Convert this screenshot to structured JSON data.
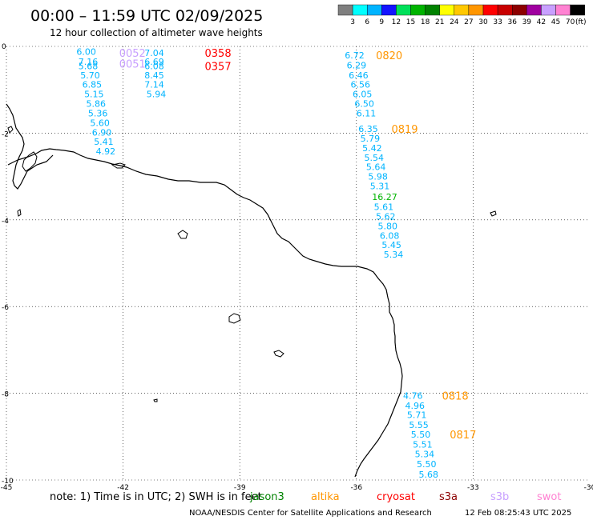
{
  "header": {
    "title": "00:00 – 11:59 UTC 02/09/2025",
    "subtitle": "12 hour collection of altimeter wave heights"
  },
  "colorbar": {
    "unit": "(ft)",
    "swatches": [
      {
        "color": "#7f7f7f",
        "label": "3"
      },
      {
        "color": "#00ffff",
        "label": "6"
      },
      {
        "color": "#00b4ff",
        "label": "9"
      },
      {
        "color": "#1414ff",
        "label": "12"
      },
      {
        "color": "#00e05a",
        "label": "15"
      },
      {
        "color": "#00b400",
        "label": "18"
      },
      {
        "color": "#008200",
        "label": "21"
      },
      {
        "color": "#ffff00",
        "label": "24"
      },
      {
        "color": "#ffc800",
        "label": "27"
      },
      {
        "color": "#ff9600",
        "label": "30"
      },
      {
        "color": "#ff0000",
        "label": "33"
      },
      {
        "color": "#c80000",
        "label": "36"
      },
      {
        "color": "#8c0000",
        "label": "39"
      },
      {
        "color": "#a000a0",
        "label": "42"
      },
      {
        "color": "#c8a0ff",
        "label": "45"
      },
      {
        "color": "#ff82d2",
        "label": "70"
      },
      {
        "color": "#000000",
        "label": ""
      }
    ]
  },
  "chart_data": {
    "type": "scatter",
    "xlim": [
      -45,
      -30
    ],
    "ylim": [
      -10,
      0
    ],
    "x_ticks": [
      "-45",
      "-42",
      "-39",
      "-36",
      "-33",
      "-30"
    ],
    "y_ticks": [
      "0",
      "-2",
      "-4",
      "-6",
      "-8",
      "-10"
    ],
    "grid": true,
    "time_labels": [
      {
        "text": "0052",
        "x": -42.1,
        "y": -0.15,
        "color": "#c8a0ff"
      },
      {
        "text": "0051",
        "x": -42.1,
        "y": -0.4,
        "color": "#c8a0ff"
      },
      {
        "text": "0358",
        "x": -39.9,
        "y": -0.15,
        "color": "#ff0000"
      },
      {
        "text": "0357",
        "x": -39.9,
        "y": -0.45,
        "color": "#ff0000"
      },
      {
        "text": "0820",
        "x": -35.5,
        "y": -0.2,
        "color": "#ff9600"
      },
      {
        "text": "0819",
        "x": -35.1,
        "y": -1.9,
        "color": "#ff9600"
      },
      {
        "text": "0818",
        "x": -33.8,
        "y": -8.05,
        "color": "#ff9600"
      },
      {
        "text": "0817",
        "x": -33.6,
        "y": -8.95,
        "color": "#ff9600"
      }
    ],
    "swh_labels": [
      {
        "text": "6.00",
        "x": -43.2,
        "y": -0.12,
        "color": "#00b4ff"
      },
      {
        "text": "7.16",
        "x": -43.15,
        "y": -0.35,
        "color": "#00b4ff"
      },
      {
        "text": "5.68",
        "x": -43.15,
        "y": -0.45,
        "color": "#00b4ff"
      },
      {
        "text": "5.70",
        "x": -43.1,
        "y": -0.66,
        "color": "#00b4ff"
      },
      {
        "text": "6.85",
        "x": -43.05,
        "y": -0.88,
        "color": "#00b4ff"
      },
      {
        "text": "5.15",
        "x": -43.0,
        "y": -1.1,
        "color": "#00b4ff"
      },
      {
        "text": "5.86",
        "x": -42.95,
        "y": -1.32,
        "color": "#00b4ff"
      },
      {
        "text": "5.36",
        "x": -42.9,
        "y": -1.54,
        "color": "#00b4ff"
      },
      {
        "text": "5.60",
        "x": -42.85,
        "y": -1.76,
        "color": "#00b4ff"
      },
      {
        "text": "6.90",
        "x": -42.8,
        "y": -1.98,
        "color": "#00b4ff"
      },
      {
        "text": "5.41",
        "x": -42.75,
        "y": -2.2,
        "color": "#00b4ff"
      },
      {
        "text": "4.92",
        "x": -42.7,
        "y": -2.42,
        "color": "#00b4ff"
      },
      {
        "text": "7.04",
        "x": -41.45,
        "y": -0.15,
        "color": "#00b4ff"
      },
      {
        "text": "6.69",
        "x": -41.45,
        "y": -0.35,
        "color": "#00b4ff"
      },
      {
        "text": "6.08",
        "x": -41.45,
        "y": -0.45,
        "color": "#00b4ff"
      },
      {
        "text": "8.45",
        "x": -41.45,
        "y": -0.66,
        "color": "#00b4ff"
      },
      {
        "text": "7.14",
        "x": -41.45,
        "y": -0.88,
        "color": "#00b4ff"
      },
      {
        "text": "5.94",
        "x": -41.4,
        "y": -1.1,
        "color": "#00b4ff"
      },
      {
        "text": "6.72",
        "x": -36.3,
        "y": -0.2,
        "color": "#00b4ff"
      },
      {
        "text": "6.29",
        "x": -36.25,
        "y": -0.43,
        "color": "#00b4ff"
      },
      {
        "text": "6.46",
        "x": -36.2,
        "y": -0.66,
        "color": "#00b4ff"
      },
      {
        "text": "6.56",
        "x": -36.15,
        "y": -0.88,
        "color": "#00b4ff"
      },
      {
        "text": "6.05",
        "x": -36.1,
        "y": -1.1,
        "color": "#00b4ff"
      },
      {
        "text": "6.50",
        "x": -36.05,
        "y": -1.32,
        "color": "#00b4ff"
      },
      {
        "text": "6.11",
        "x": -36.0,
        "y": -1.54,
        "color": "#00b4ff"
      },
      {
        "text": "6.35",
        "x": -35.95,
        "y": -1.9,
        "color": "#00b4ff"
      },
      {
        "text": "5.79",
        "x": -35.9,
        "y": -2.12,
        "color": "#00b4ff"
      },
      {
        "text": "5.42",
        "x": -35.85,
        "y": -2.34,
        "color": "#00b4ff"
      },
      {
        "text": "5.54",
        "x": -35.8,
        "y": -2.56,
        "color": "#00b4ff"
      },
      {
        "text": "5.64",
        "x": -35.75,
        "y": -2.78,
        "color": "#00b4ff"
      },
      {
        "text": "5.98",
        "x": -35.7,
        "y": -3.0,
        "color": "#00b4ff"
      },
      {
        "text": "5.31",
        "x": -35.65,
        "y": -3.22,
        "color": "#00b4ff"
      },
      {
        "text": "16.27",
        "x": -35.6,
        "y": -3.47,
        "color": "#00b400"
      },
      {
        "text": "5.61",
        "x": -35.55,
        "y": -3.7,
        "color": "#00b4ff"
      },
      {
        "text": "5.62",
        "x": -35.5,
        "y": -3.92,
        "color": "#00b4ff"
      },
      {
        "text": "5.80",
        "x": -35.45,
        "y": -4.14,
        "color": "#00b4ff"
      },
      {
        "text": "6.08",
        "x": -35.4,
        "y": -4.36,
        "color": "#00b4ff"
      },
      {
        "text": "5.45",
        "x": -35.35,
        "y": -4.58,
        "color": "#00b4ff"
      },
      {
        "text": "5.34",
        "x": -35.3,
        "y": -4.8,
        "color": "#00b4ff"
      },
      {
        "text": "4.76",
        "x": -34.8,
        "y": -8.05,
        "color": "#00b4ff"
      },
      {
        "text": "4.96",
        "x": -34.75,
        "y": -8.28,
        "color": "#00b4ff"
      },
      {
        "text": "5.71",
        "x": -34.7,
        "y": -8.5,
        "color": "#00b4ff"
      },
      {
        "text": "5.55",
        "x": -34.65,
        "y": -8.73,
        "color": "#00b4ff"
      },
      {
        "text": "5.50",
        "x": -34.6,
        "y": -8.95,
        "color": "#00b4ff"
      },
      {
        "text": "5.51",
        "x": -34.55,
        "y": -9.18,
        "color": "#00b4ff"
      },
      {
        "text": "5.34",
        "x": -34.5,
        "y": -9.4,
        "color": "#00b4ff"
      },
      {
        "text": "5.50",
        "x": -34.45,
        "y": -9.63,
        "color": "#00b4ff"
      },
      {
        "text": "5.68",
        "x": -34.4,
        "y": -9.87,
        "color": "#00b4ff"
      }
    ]
  },
  "footer": {
    "note_text": "note: 1) Time is in UTC; 2) SWH is in feet",
    "credit": "NOAA/NESDIS Center for Satellite Applications and Research",
    "generated": "12 Feb 08:25:43 UTC 2025"
  },
  "legend": [
    {
      "name": "jason3",
      "color": "#008200"
    },
    {
      "name": "altika",
      "color": "#ff9600"
    },
    {
      "name": "cryosat",
      "color": "#ff0000"
    },
    {
      "name": "s3a",
      "color": "#8c0000"
    },
    {
      "name": "s3b",
      "color": "#c8a0ff"
    },
    {
      "name": "swot",
      "color": "#ff82d2"
    }
  ]
}
